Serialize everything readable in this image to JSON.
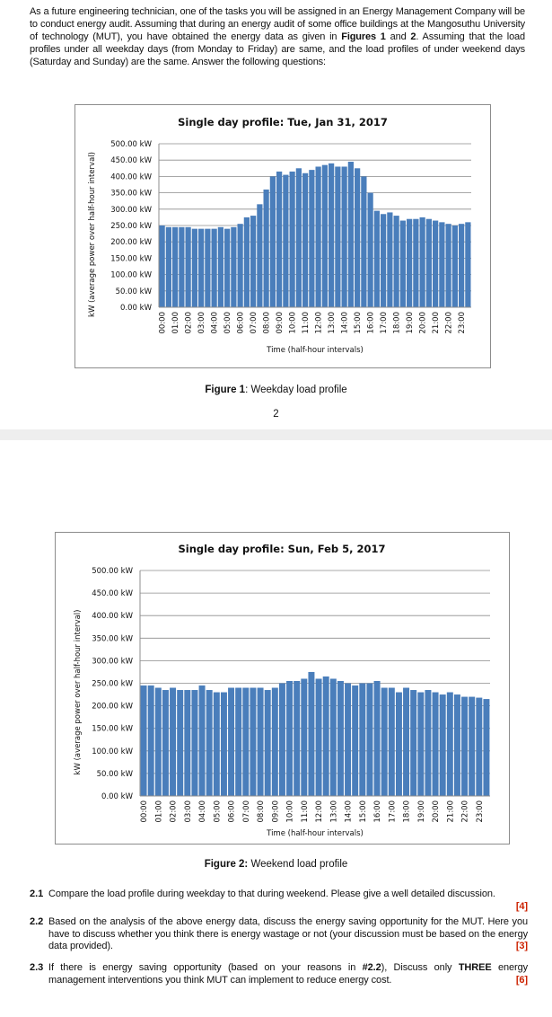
{
  "page1": {
    "intro": {
      "part1": "As a future engineering technician, one of the tasks you will be assigned in an Energy Management Company will be to conduct energy audit. Assuming that during an energy audit of some office buildings at the Mangosuthu University of technology (MUT), you have obtained the energy data as given in ",
      "bold1": "Figures 1",
      "part2": " and ",
      "bold2": "2",
      "part3": ". Assuming that the load profiles under all weekday days (from Monday to Friday) are same, and the load profiles of under weekend days (Saturday and Sunday) are the same. Answer the following questions:"
    },
    "caption_label": "Figure 1",
    "caption_text": ": Weekday load profile",
    "page_number": "2"
  },
  "page2": {
    "caption_label": "Figure 2:",
    "caption_text": " Weekend load profile",
    "questions": [
      {
        "num": "2.1",
        "text": "Compare the load profile during weekday to that during weekend. Please give a well detailed discussion.",
        "marks": "[4]"
      },
      {
        "num": "2.2",
        "text": "Based on the analysis of the above energy data, discuss the energy saving opportunity for the MUT. Here you have to discuss whether you think there is energy wastage or not (your discussion must be based on the energy data provided).",
        "marks": "[3]"
      },
      {
        "num": "2.3",
        "text_pre": "If there is energy saving opportunity (based on your reasons in ",
        "text_bold1": "#2.2",
        "text_mid": "), Discuss only ",
        "text_bold2": "THREE",
        "text_post": " energy management interventions you think MUT can implement to reduce energy cost.",
        "marks": "[6]"
      }
    ]
  },
  "colors": {
    "bar": "#4a7ebb",
    "grid": "#8c8c8c",
    "marks": "#cc2200"
  },
  "chart_data": [
    {
      "type": "bar",
      "title": "Single day profile: Tue, Jan 31, 2017",
      "xlabel": "Time (half-hour intervals)",
      "ylabel": "kW (average power over half-hour interval)",
      "ylim": [
        0,
        500
      ],
      "yticks": [
        "0.00 kW",
        "50.00 kW",
        "100.00 kW",
        "150.00 kW",
        "200.00 kW",
        "250.00 kW",
        "300.00 kW",
        "350.00 kW",
        "400.00 kW",
        "450.00 kW",
        "500.00 kW"
      ],
      "xtick_labels": [
        "00:00",
        "01:00",
        "02:00",
        "03:00",
        "04:00",
        "05:00",
        "06:00",
        "07:00",
        "08:00",
        "09:00",
        "10:00",
        "11:00",
        "12:00",
        "13:00",
        "14:00",
        "15:00",
        "16:00",
        "17:00",
        "18:00",
        "19:00",
        "20:00",
        "21:00",
        "22:00",
        "23:00"
      ],
      "values": [
        250,
        245,
        245,
        245,
        245,
        240,
        240,
        240,
        240,
        245,
        240,
        245,
        255,
        275,
        280,
        315,
        360,
        400,
        415,
        405,
        415,
        425,
        410,
        420,
        430,
        435,
        440,
        430,
        430,
        445,
        425,
        400,
        350,
        295,
        285,
        290,
        280,
        265,
        270,
        270,
        275,
        270,
        265,
        260,
        255,
        250,
        255,
        260
      ]
    },
    {
      "type": "bar",
      "title": "Single day profile: Sun, Feb 5, 2017",
      "xlabel": "Time (half-hour intervals)",
      "ylabel": "kW (average power over half-hour interval)",
      "ylim": [
        0,
        500
      ],
      "yticks": [
        "0.00 kW",
        "50.00 kW",
        "100.00 kW",
        "150.00 kW",
        "200.00 kW",
        "250.00 kW",
        "300.00 kW",
        "350.00 kW",
        "400.00 kW",
        "450.00 kW",
        "500.00 kW"
      ],
      "xtick_labels": [
        "00:00",
        "01:00",
        "02:00",
        "03:00",
        "04:00",
        "05:00",
        "06:00",
        "07:00",
        "08:00",
        "09:00",
        "10:00",
        "11:00",
        "12:00",
        "13:00",
        "14:00",
        "15:00",
        "16:00",
        "17:00",
        "18:00",
        "19:00",
        "20:00",
        "21:00",
        "22:00",
        "23:00"
      ],
      "values": [
        245,
        245,
        240,
        235,
        240,
        235,
        235,
        235,
        245,
        235,
        230,
        230,
        240,
        240,
        240,
        240,
        240,
        235,
        240,
        250,
        255,
        255,
        260,
        275,
        260,
        265,
        260,
        255,
        250,
        245,
        250,
        250,
        255,
        240,
        240,
        230,
        240,
        235,
        230,
        235,
        230,
        225,
        230,
        225,
        220,
        220,
        218,
        215
      ]
    }
  ]
}
